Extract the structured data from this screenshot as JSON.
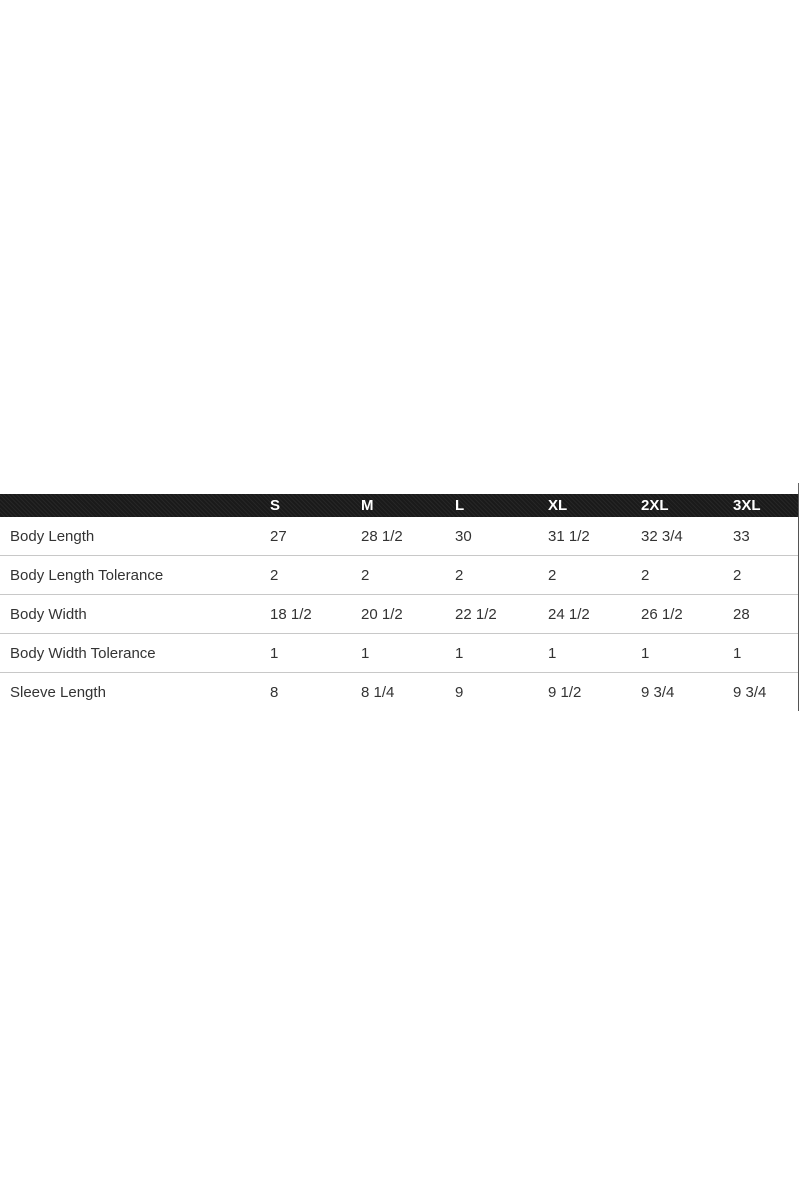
{
  "table": {
    "headers": [
      "",
      "S",
      "M",
      "L",
      "XL",
      "2XL",
      "3XL"
    ],
    "rows": [
      {
        "label": "Body Length",
        "values": [
          "27",
          "28 1/2",
          "30",
          "31 1/2",
          "32 3/4",
          "33"
        ]
      },
      {
        "label": "Body Length Tolerance",
        "values": [
          "2",
          "2",
          "2",
          "2",
          "2",
          "2"
        ]
      },
      {
        "label": "Body Width",
        "values": [
          "18 1/2",
          "20 1/2",
          "22 1/2",
          "24 1/2",
          "26 1/2",
          "28"
        ]
      },
      {
        "label": "Body Width Tolerance",
        "values": [
          "1",
          "1",
          "1",
          "1",
          "1",
          "1"
        ]
      },
      {
        "label": "Sleeve Length",
        "values": [
          "8",
          "8 1/4",
          "9",
          "9 1/2",
          "9 3/4",
          "9 3/4"
        ]
      }
    ]
  }
}
